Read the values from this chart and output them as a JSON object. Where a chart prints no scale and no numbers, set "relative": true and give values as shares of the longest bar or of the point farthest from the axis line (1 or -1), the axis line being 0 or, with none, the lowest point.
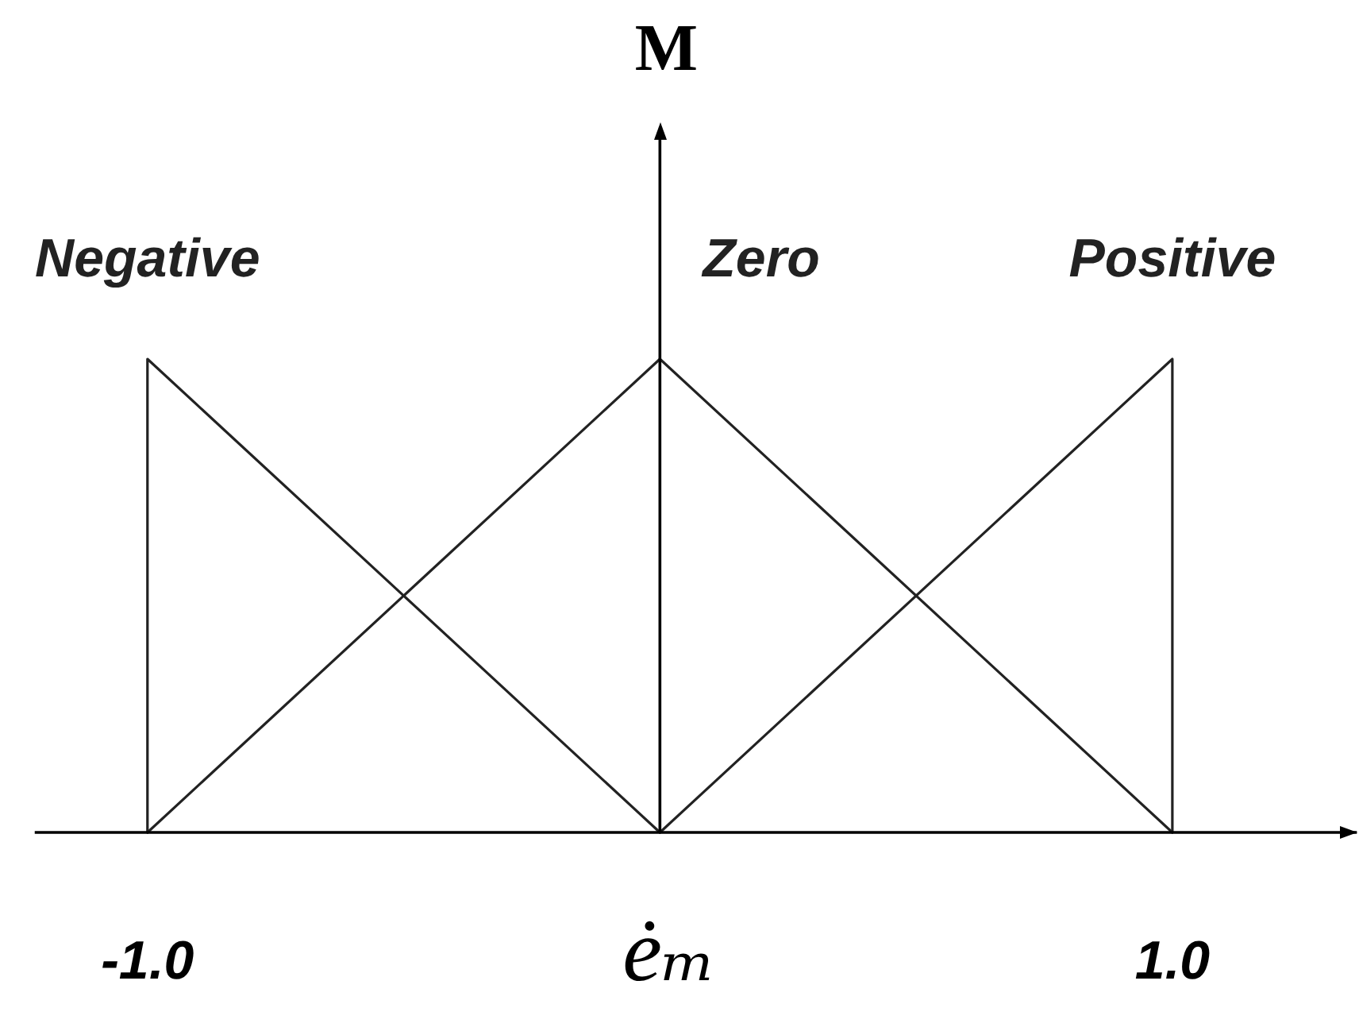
{
  "chart_data": {
    "type": "line",
    "xlabel": "ėₘ",
    "ylabel": "M",
    "relative": true,
    "xlim": [
      -1.22,
      1.36
    ],
    "xticks": [
      {
        "value": -1,
        "label": "-1.0"
      },
      {
        "value": 1,
        "label": "1.0"
      }
    ],
    "series": [
      {
        "name": "Negative",
        "color": "#222222",
        "x": [
          -1,
          -1,
          0
        ],
        "values": [
          0,
          1,
          0
        ]
      },
      {
        "name": "Zero",
        "color": "#222222",
        "x": [
          -1,
          0,
          1
        ],
        "values": [
          0,
          1,
          0
        ]
      },
      {
        "name": "Positive",
        "color": "#222222",
        "x": [
          0,
          1,
          1
        ],
        "values": [
          0,
          1,
          0
        ]
      }
    ],
    "legend": false,
    "marker": "none",
    "line_style": "solid"
  }
}
